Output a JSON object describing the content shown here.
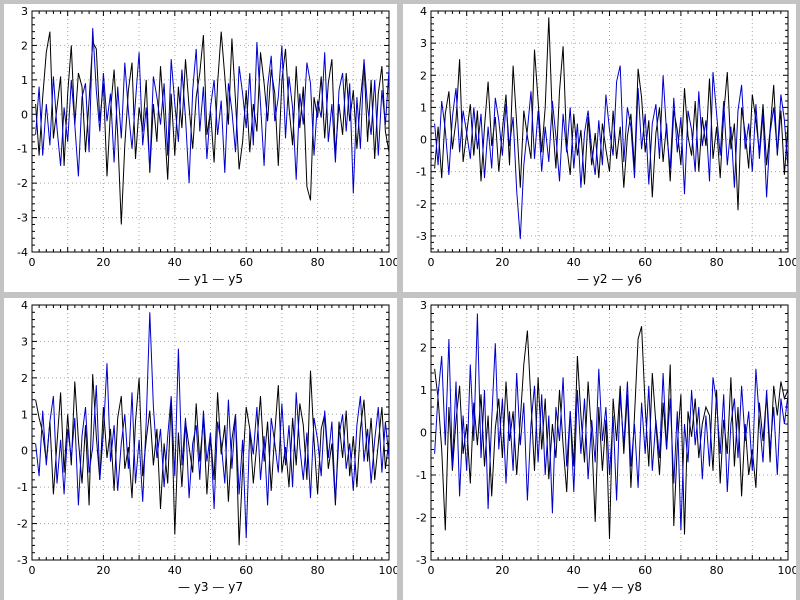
{
  "chart_data": [
    {
      "type": "line",
      "title": "",
      "xlabel": "",
      "ylabel": "",
      "xlim": [
        0,
        100
      ],
      "ylim": [
        -4,
        3
      ],
      "xticks": [
        0,
        20,
        40,
        60,
        80,
        100
      ],
      "x_grid_step": 10,
      "y_grid_step": 1,
      "grid": true,
      "legend_position": "bottom",
      "series": [
        {
          "name": "y1",
          "color": "#000000",
          "values": [
            0.3,
            -1.2,
            0.5,
            1.8,
            2.4,
            -0.7,
            0.2,
            1.1,
            -1.5,
            0.6,
            2.0,
            -0.3,
            1.2,
            0.8,
            -1.1,
            0.4,
            2.1,
            1.9,
            -0.2,
            0.9,
            -1.8,
            0.1,
            1.3,
            -0.6,
            -3.2,
            -0.9,
            0.7,
            1.5,
            -1.3,
            0.2,
            -0.5,
            1.0,
            -1.7,
            0.3,
            -0.8,
            1.4,
            -0.1,
            -1.9,
            0.6,
            -1.2,
            0.8,
            -0.4,
            1.6,
            0.2,
            -1.0,
            0.5,
            1.2,
            2.3,
            -0.6,
            0.1,
            -1.4,
            0.9,
            2.4,
            1.1,
            -0.3,
            2.2,
            0.4,
            -1.6,
            -0.8,
            0.7,
            -1.1,
            0.3,
            -0.5,
            1.8,
            0.9,
            -0.2,
            1.3,
            0.6,
            -1.5,
            1.0,
            1.9,
            0.2,
            -0.9,
            1.4,
            -0.4,
            0.8,
            -2.1,
            -2.5,
            0.5,
            -0.1,
            1.1,
            -0.7,
            0.9,
            1.6,
            -1.2,
            0.3,
            -0.6,
            1.2,
            -0.2,
            0.7,
            -1.0,
            0.4,
            1.5,
            -0.8,
            1.0,
            -1.3,
            0.6,
            1.4,
            -0.5,
            -1.1
          ]
        },
        {
          "name": "y5",
          "color": "#0000cc",
          "values": [
            -0.6,
            0.8,
            -1.2,
            0.3,
            -0.9,
            1.1,
            -0.4,
            -1.5,
            0.2,
            -0.8,
            1.0,
            -0.3,
            -1.8,
            0.5,
            0.9,
            -1.1,
            2.5,
            0.7,
            -0.5,
            1.2,
            -0.2,
            0.6,
            -1.4,
            0.8,
            -0.7,
            1.5,
            0.1,
            -1.0,
            0.4,
            1.8,
            -0.9,
            0.2,
            -1.6,
            1.1,
            0.5,
            -0.3,
            0.9,
            -1.2,
            1.6,
            0.3,
            -0.8,
            1.3,
            -0.1,
            -2.0,
            0.7,
            1.9,
            -0.5,
            0.8,
            -1.3,
            0.2,
            1.0,
            -0.6,
            0.4,
            -1.7,
            0.9,
            0.1,
            -1.1,
            1.4,
            0.6,
            -0.4,
            1.2,
            -0.9,
            2.1,
            0.3,
            -1.5,
            0.8,
            1.7,
            -0.2,
            0.5,
            2.0,
            -0.7,
            1.1,
            0.2,
            -1.9,
            0.6,
            -0.3,
            1.5,
            0.9,
            -1.2,
            0.4,
            -0.1,
            1.8,
            -0.8,
            0.3,
            -1.4,
            0.7,
            1.2,
            -0.5,
            0.9,
            -2.3,
            0.5,
            -1.0,
            1.6,
            0.2,
            -0.6,
            1.0,
            -1.2,
            0.7,
            -0.3,
            1.3
          ]
        }
      ]
    },
    {
      "type": "line",
      "title": "",
      "xlabel": "",
      "ylabel": "",
      "xlim": [
        0,
        100
      ],
      "ylim": [
        -3.5,
        4
      ],
      "xticks": [
        0,
        20,
        40,
        60,
        80,
        100
      ],
      "x_grid_step": 10,
      "y_grid_step": 1,
      "grid": true,
      "legend_position": "bottom",
      "series": [
        {
          "name": "y2",
          "color": "#000000",
          "values": [
            -0.9,
            0.4,
            -1.2,
            0.8,
            1.5,
            -0.3,
            0.6,
            2.5,
            -0.7,
            0.2,
            1.1,
            -0.5,
            0.9,
            -1.3,
            0.4,
            1.8,
            -0.2,
            0.7,
            -1.0,
            0.3,
            1.4,
            -0.8,
            2.3,
            0.5,
            -1.5,
            0.9,
            0.1,
            -0.6,
            2.8,
            1.2,
            -0.4,
            1.0,
            3.8,
            0.6,
            -0.9,
            1.5,
            2.9,
            -0.2,
            -1.1,
            0.8,
            -0.5,
            0.3,
            -1.4,
            0.7,
            -0.8,
            0.2,
            -1.2,
            0.5,
            -0.3,
            -1.0,
            0.9,
            -0.6,
            0.4,
            -1.5,
            0.1,
            0.8,
            -0.9,
            2.2,
            1.3,
            -0.4,
            0.6,
            -1.8,
            0.2,
            1.0,
            -0.7,
            0.5,
            -1.3,
            0.9,
            0.3,
            -0.8,
            1.6,
            0.1,
            -0.5,
            1.2,
            -1.0,
            0.7,
            -0.2,
            1.9,
            -0.6,
            0.4,
            -1.2,
            0.8,
            2.1,
            -0.3,
            0.5,
            -2.2,
            1.0,
            0.2,
            -0.9,
            1.4,
            0.6,
            -0.4,
            1.1,
            -0.8,
            0.3,
            1.7,
            -0.5,
            0.9,
            -1.1,
            0.5
          ]
        },
        {
          "name": "y6",
          "color": "#0000cc",
          "values": [
            0.5,
            -0.8,
            1.2,
            0.3,
            -1.1,
            0.7,
            1.6,
            -0.4,
            0.9,
            0.2,
            -0.6,
            1.0,
            -0.3,
            0.8,
            -1.2,
            0.4,
            -0.9,
            1.3,
            0.6,
            -0.5,
            1.1,
            -0.2,
            0.7,
            -1.6,
            -3.1,
            -0.8,
            0.3,
            1.5,
            -0.6,
            0.9,
            -1.0,
            0.4,
            -0.7,
            1.2,
            0.1,
            -1.3,
            0.8,
            -0.4,
            1.0,
            -0.9,
            0.5,
            -1.5,
            0.2,
            0.9,
            -0.3,
            -1.1,
            0.6,
            -0.8,
            1.4,
            0.3,
            -0.5,
            1.8,
            2.3,
            -0.7,
            1.0,
            0.4,
            -1.2,
            1.6,
            -0.3,
            0.8,
            -1.4,
            0.5,
            1.1,
            -0.6,
            2.0,
            0.2,
            -0.9,
            1.3,
            -0.4,
            0.7,
            -1.7,
            0.9,
            0.3,
            -1.0,
            1.5,
            -0.2,
            0.6,
            -1.3,
            2.1,
            0.8,
            -0.5,
            1.2,
            -0.8,
            0.4,
            -1.5,
            0.9,
            1.7,
            -0.3,
            0.5,
            -1.0,
            1.1,
            -0.6,
            0.8,
            -1.8,
            0.2,
            1.0,
            -0.4,
            1.4,
            0.6,
            -0.9
          ]
        }
      ]
    },
    {
      "type": "line",
      "title": "",
      "xlabel": "",
      "ylabel": "",
      "xlim": [
        0,
        100
      ],
      "ylim": [
        -3,
        4
      ],
      "xticks": [
        0,
        20,
        40,
        60,
        80,
        100
      ],
      "x_grid_step": 10,
      "y_grid_step": 1,
      "grid": true,
      "legend_position": "bottom",
      "series": [
        {
          "name": "y3",
          "color": "#000000",
          "values": [
            1.4,
            0.9,
            0.5,
            -0.3,
            0.8,
            -1.2,
            0.2,
            1.6,
            -0.6,
            1.0,
            -0.4,
            1.9,
            0.3,
            -0.9,
            0.7,
            -1.5,
            2.1,
            0.4,
            -0.8,
            1.2,
            -0.2,
            0.6,
            -1.1,
            0.9,
            1.5,
            -0.5,
            0.1,
            -1.3,
            0.8,
            2.0,
            -0.7,
            0.3,
            1.1,
            -0.4,
            0.6,
            -1.6,
            0.2,
            -0.9,
            1.4,
            -2.3,
            0.5,
            -1.0,
            0.8,
            0.1,
            -0.6,
            1.3,
            -0.3,
            0.9,
            -1.2,
            0.4,
            -0.8,
            1.6,
            -0.1,
            0.7,
            -1.4,
            0.3,
            1.0,
            -2.6,
            -0.5,
            1.2,
            0.6,
            -0.9,
            0.2,
            1.5,
            -0.3,
            0.8,
            -1.1,
            0.5,
            1.8,
            -0.6,
            0.1,
            -1.0,
            0.9,
            -0.4,
            1.3,
            0.7,
            -0.8,
            2.2,
            0.3,
            -1.2,
            0.6,
            1.0,
            -0.5,
            0.2,
            -1.5,
            0.8,
            -0.2,
            1.1,
            -0.7,
            0.4,
            -1.0,
            0.6,
            1.4,
            -0.3,
            0.9,
            -0.8,
            0.2,
            1.2,
            -0.5,
            0.3
          ]
        },
        {
          "name": "y7",
          "color": "#0000cc",
          "values": [
            0.2,
            -0.7,
            1.1,
            -0.4,
            0.8,
            1.5,
            -0.9,
            0.3,
            -1.2,
            0.6,
            -0.2,
            0.9,
            -1.5,
            0.4,
            1.2,
            -0.6,
            0.1,
            1.8,
            -0.8,
            0.5,
            2.4,
            -0.3,
            0.7,
            -1.1,
            0.2,
            1.0,
            -0.5,
            1.6,
            -0.9,
            0.3,
            -1.4,
            0.8,
            3.8,
            1.2,
            -0.2,
            0.6,
            -1.0,
            0.4,
            1.5,
            -0.7,
            2.8,
            -0.4,
            0.9,
            -1.3,
            0.2,
            0.7,
            -0.8,
            1.1,
            -0.3,
            0.5,
            -1.6,
            0.8,
            0.2,
            -0.9,
            1.4,
            -0.5,
            1.0,
            -1.2,
            0.3,
            -2.4,
            0.6,
            -0.1,
            1.2,
            -0.8,
            0.4,
            -1.5,
            0.9,
            0.2,
            -0.6,
            1.3,
            -0.4,
            0.7,
            -1.0,
            1.6,
            0.1,
            -0.8,
            0.5,
            -1.3,
            0.9,
            0.3,
            -0.7,
            1.1,
            -0.2,
            0.8,
            -1.4,
            0.4,
            1.0,
            -0.5,
            0.2,
            -1.1,
            0.7,
            1.5,
            -0.3,
            0.6,
            -0.9,
            0.3,
            1.2,
            -0.6,
            0.8,
            -0.2
          ]
        }
      ]
    },
    {
      "type": "line",
      "title": "",
      "xlabel": "",
      "ylabel": "",
      "xlim": [
        0,
        100
      ],
      "ylim": [
        -3,
        3
      ],
      "xticks": [
        0,
        20,
        40,
        60,
        80,
        100
      ],
      "x_grid_step": 10,
      "y_grid_step": 1,
      "grid": true,
      "legend_position": "bottom",
      "series": [
        {
          "name": "y4",
          "color": "#000000",
          "values": [
            1.5,
            0.8,
            -0.4,
            -2.3,
            0.6,
            -0.9,
            0.3,
            1.1,
            -0.5,
            0.2,
            -1.2,
            0.7,
            -0.3,
            0.9,
            -0.8,
            0.4,
            -1.5,
            0.1,
            0.8,
            -0.6,
            1.2,
            -0.2,
            0.5,
            -1.0,
            0.3,
            1.6,
            2.4,
            0.7,
            -0.9,
            1.3,
            -0.4,
            0.8,
            -1.1,
            0.2,
            -0.6,
            1.0,
            -0.3,
            -1.4,
            0.5,
            -0.8,
            1.8,
            0.4,
            -0.7,
            1.2,
            -0.1,
            -2.1,
            0.6,
            -0.9,
            0.3,
            -2.5,
            0.8,
            -0.2,
            1.1,
            -0.5,
            0.9,
            -1.3,
            0.4,
            2.2,
            2.5,
            0.6,
            -0.8,
            1.4,
            0.2,
            -1.0,
            0.7,
            -0.4,
            1.6,
            -2.2,
            -0.3,
            0.9,
            -2.4,
            0.5,
            -0.1,
            0.8,
            -0.6,
            0.2,
            0.6,
            0.4,
            -0.9,
            1.0,
            -1.2,
            0.3,
            -0.5,
            1.3,
            -0.8,
            0.6,
            -1.5,
            0.2,
            -1.0,
            -0.4,
            -1.3,
            0.7,
            -0.2,
            0.9,
            -0.7,
            1.1,
            0.4,
            1.2,
            0.8,
            1.0
          ]
        },
        {
          "name": "y8",
          "color": "#0000cc",
          "values": [
            -0.5,
            0.9,
            1.8,
            -0.3,
            2.2,
            -0.8,
            1.2,
            -1.5,
            0.4,
            -0.9,
            1.6,
            -0.2,
            2.8,
            -0.6,
            1.0,
            -1.8,
            0.3,
            2.1,
            -0.4,
            0.8,
            -1.2,
            0.5,
            -0.9,
            1.4,
            -0.3,
            0.7,
            -1.6,
            0.2,
            1.1,
            -0.7,
            0.9,
            -1.0,
            0.4,
            -1.9,
            0.6,
            -0.2,
            1.3,
            -0.8,
            0.5,
            -1.4,
            1.0,
            -0.5,
            0.8,
            -1.1,
            0.3,
            -0.7,
            1.5,
            -0.2,
            0.6,
            -1.0,
            0.4,
            -1.6,
            0.9,
            -0.3,
            1.2,
            -0.8,
            0.2,
            -1.3,
            0.7,
            -0.5,
            1.1,
            -0.9,
            0.3,
            -0.6,
            1.4,
            -0.4,
            0.8,
            -1.2,
            0.5,
            -2.3,
            0.2,
            -0.7,
            1.0,
            -0.3,
            0.6,
            -1.1,
            0.4,
            -0.8,
            1.3,
            0.7,
            -0.5,
            0.9,
            -1.4,
            0.2,
            0.8,
            -0.6,
            1.1,
            -0.2,
            0.5,
            -0.9,
            1.5,
            0.3,
            -0.7,
            1.0,
            -0.4,
            0.6,
            -1.0,
            0.8,
            0.2,
            0.9
          ]
        }
      ]
    }
  ],
  "style": {
    "grid_color": "#a8a8a8",
    "axis_color": "#000000",
    "tick_label_color": "#000000",
    "background": "#ffffff",
    "gutter_color": "#c3c3c3"
  }
}
